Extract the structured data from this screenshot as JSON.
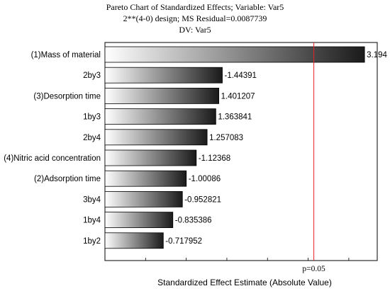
{
  "chart_data": {
    "type": "bar",
    "orientation": "horizontal",
    "title": "Pareto Chart of Standardized Effects; Variable: Var5",
    "subtitle": "2**(4-0) design; MS Residual=0.0087739",
    "subtitle2": "DV: Var5",
    "xlabel": "Standardized Effect Estimate (Absolute Value)",
    "xlim": [
      0,
      3.35
    ],
    "categories": [
      "(1)Mass of material",
      "2by3",
      "(3)Desorption time",
      "1by3",
      "2by4",
      "(4)Nitric acid concentration",
      "(2)Adsorption time",
      "3by4",
      "1by4",
      "1by2"
    ],
    "values": [
      3.194,
      1.44391,
      1.401207,
      1.363841,
      1.257083,
      1.12368,
      1.00086,
      0.952821,
      0.835386,
      0.717952
    ],
    "value_labels": [
      "3.194",
      "-1.44391",
      "1.401207",
      "1.363841",
      "1.257083",
      "-1.12368",
      "-1.00086",
      "-0.952821",
      "-0.835386",
      "-0.717952"
    ],
    "reference_line": {
      "value": 2.57,
      "label": "p=0.05",
      "color": "#e8202a"
    },
    "bar_gradient": {
      "from": "#ffffff",
      "to": "#1a1a1a"
    },
    "grid": false
  }
}
